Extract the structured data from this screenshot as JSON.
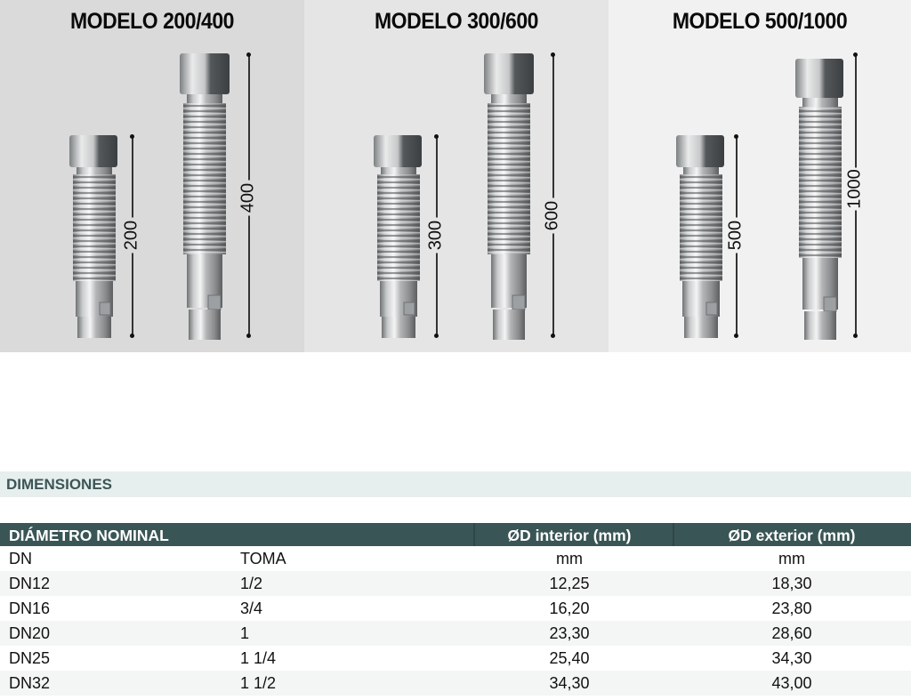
{
  "models": [
    {
      "title": "MODELO 200/400",
      "short_label": "200",
      "long_label": "400"
    },
    {
      "title": "MODELO 300/600",
      "short_label": "300",
      "long_label": "600"
    },
    {
      "title": "MODELO 500/1000",
      "short_label": "500",
      "long_label": "1000"
    }
  ],
  "section_title": "DIMENSIONES",
  "table": {
    "headers": {
      "nominal": "DIÁMETRO NOMINAL",
      "interior": "ØD interior (mm)",
      "exterior": "ØD exterior (mm)"
    },
    "units_row": {
      "dn": "DN",
      "toma": "TOMA",
      "interior": "mm",
      "exterior": "mm"
    },
    "rows": [
      {
        "dn": "DN12",
        "toma": "1/2",
        "interior": "12,25",
        "exterior": "18,30"
      },
      {
        "dn": "DN16",
        "toma": "3/4",
        "interior": "16,20",
        "exterior": "23,80"
      },
      {
        "dn": "DN20",
        "toma": "1",
        "interior": "23,30",
        "exterior": "28,60"
      },
      {
        "dn": "DN25",
        "toma": "1 1/4",
        "interior": "25,40",
        "exterior": "34,30"
      },
      {
        "dn": "DN32",
        "toma": "1 1/2",
        "interior": "34,30",
        "exterior": "43,00"
      }
    ]
  }
}
